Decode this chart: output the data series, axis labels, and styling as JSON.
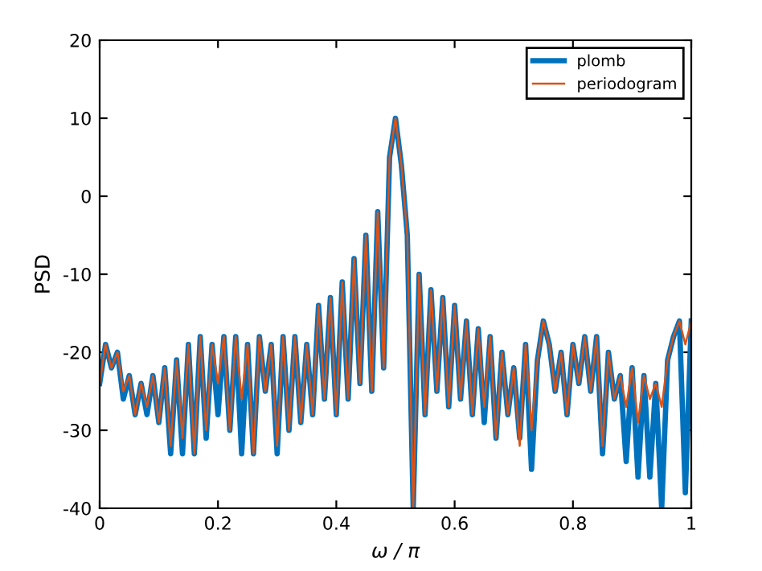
{
  "chart_data": {
    "type": "line",
    "xlabel": "ω / π",
    "ylabel": "PSD",
    "x": [
      0,
      0.01,
      0.02,
      0.03,
      0.04,
      0.05,
      0.06,
      0.07,
      0.08,
      0.09,
      0.1,
      0.11,
      0.12,
      0.13,
      0.14,
      0.15,
      0.16,
      0.17,
      0.18,
      0.19,
      0.2,
      0.21,
      0.22,
      0.23,
      0.24,
      0.25,
      0.26,
      0.27,
      0.28,
      0.29,
      0.3,
      0.31,
      0.32,
      0.33,
      0.34,
      0.35,
      0.36,
      0.37,
      0.38,
      0.39,
      0.4,
      0.41,
      0.42,
      0.43,
      0.44,
      0.45,
      0.46,
      0.47,
      0.48,
      0.49,
      0.5,
      0.51,
      0.52,
      0.53,
      0.54,
      0.55,
      0.56,
      0.57,
      0.58,
      0.59,
      0.6,
      0.61,
      0.62,
      0.63,
      0.64,
      0.65,
      0.66,
      0.67,
      0.68,
      0.69,
      0.7,
      0.71,
      0.72,
      0.73,
      0.74,
      0.75,
      0.76,
      0.77,
      0.78,
      0.79,
      0.8,
      0.81,
      0.82,
      0.83,
      0.84,
      0.85,
      0.86,
      0.87,
      0.88,
      0.89,
      0.9,
      0.91,
      0.92,
      0.93,
      0.94,
      0.95,
      0.96,
      0.97,
      0.98,
      0.99,
      1
    ],
    "series": [
      {
        "name": "plomb",
        "color": "#0072bd",
        "values": [
          -24,
          -19,
          -22,
          -20,
          -26,
          -23,
          -28,
          -24,
          -28,
          -23,
          -29,
          -22,
          -33,
          -21,
          -33,
          -19,
          -33,
          -18,
          -31,
          -19,
          -28,
          -18,
          -30,
          -18,
          -33,
          -19,
          -33,
          -18,
          -25,
          -19,
          -33,
          -18,
          -30,
          -18,
          -29,
          -19,
          -28,
          -14,
          -26,
          -13,
          -28,
          -11,
          -26,
          -8,
          -24,
          -5,
          -25,
          -2,
          -22,
          5,
          10,
          4,
          -5,
          -40,
          -10,
          -28,
          -12,
          -25,
          -13,
          -27,
          -14,
          -26,
          -16,
          -28,
          -17,
          -29,
          -18,
          -31,
          -20,
          -28,
          -22,
          -31,
          -19,
          -35,
          -21,
          -16,
          -19,
          -25,
          -20,
          -28,
          -19,
          -24,
          -18,
          -25,
          -18,
          -33,
          -20,
          -26,
          -23,
          -34,
          -22,
          -36,
          -23,
          -36,
          -24,
          -40,
          -21,
          -18,
          -16,
          -38,
          -16
        ]
      },
      {
        "name": "periodogram",
        "color": "#d95319",
        "values": [
          -24,
          -19,
          -22,
          -20,
          -25,
          -23,
          -28,
          -24,
          -27,
          -23,
          -29,
          -22,
          -32,
          -21,
          -31,
          -19,
          -33,
          -18,
          -30,
          -19,
          -24,
          -18,
          -30,
          -18,
          -26,
          -19,
          -33,
          -18,
          -25,
          -19,
          -32,
          -18,
          -30,
          -18,
          -29,
          -19,
          -28,
          -14,
          -26,
          -13,
          -28,
          -11,
          -26,
          -8,
          -24,
          -5,
          -25,
          -2,
          -22,
          5,
          10,
          4,
          -5,
          -40,
          -10,
          -28,
          -12,
          -25,
          -13,
          -27,
          -14,
          -26,
          -16,
          -28,
          -17,
          -27,
          -18,
          -31,
          -20,
          -28,
          -22,
          -32,
          -19,
          -30,
          -21,
          -16,
          -19,
          -25,
          -20,
          -28,
          -19,
          -24,
          -18,
          -25,
          -18,
          -32,
          -20,
          -26,
          -23,
          -27,
          -22,
          -29,
          -23,
          -26,
          -24,
          -27,
          -21,
          -18,
          -16,
          -19,
          -16
        ]
      }
    ],
    "xlim": [
      0,
      1
    ],
    "ylim": [
      -40,
      20
    ],
    "xticks": [
      0,
      0.2,
      0.4,
      0.6,
      0.8,
      1
    ],
    "yticks": [
      -40,
      -30,
      -20,
      -10,
      0,
      10,
      20
    ],
    "legend": "top right",
    "grid": false
  }
}
